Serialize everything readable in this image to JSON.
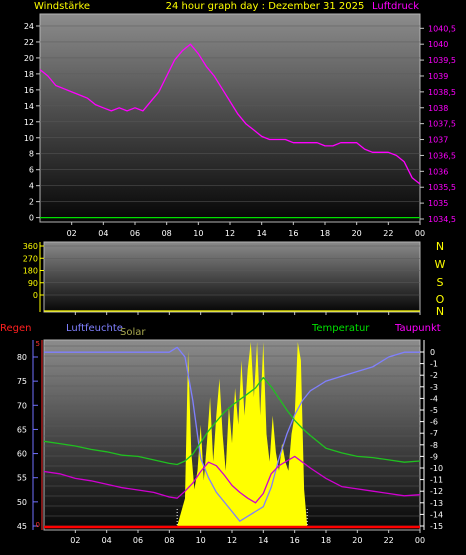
{
  "header": {
    "left_label": "Windstärke",
    "center_title": "24 hour graph day : Dezember 31 2025",
    "right_label": "Luftdruck"
  },
  "compass_letters": [
    "N",
    "W",
    "S",
    "O",
    "N"
  ],
  "bottom_labels": {
    "regen": "Regen",
    "luftfeuchte": "Luftfeuchte",
    "solar": "Solar",
    "temperatur": "Temperatur",
    "taupunkt": "Taupunkt"
  },
  "colors": {
    "yellow": "#ffff00",
    "magenta": "#ff00ff",
    "green": "#00e000",
    "blue_line": "#8a8aff",
    "red": "#ff0000",
    "solar": "#ffff00",
    "temp": "#20c020",
    "dew": "#d000d0",
    "hum": "#8080ff",
    "rain_axis": "#ff3030",
    "hum_axis": "#7070ff"
  },
  "chart_data": [
    {
      "type": "line",
      "panel": "wind-pressure",
      "x_ticks": [
        "02",
        "04",
        "06",
        "08",
        "10",
        "12",
        "14",
        "16",
        "18",
        "20",
        "22",
        "00"
      ],
      "y_left_ticks": [
        "0",
        "2",
        "4",
        "6",
        "8",
        "10",
        "12",
        "14",
        "16",
        "18",
        "20",
        "22",
        "24"
      ],
      "y_left_range": [
        0,
        24
      ],
      "y_right_ticks": [
        "1034,5",
        "1035",
        "1035,5",
        "1036",
        "1036,5",
        "1037",
        "1037,5",
        "1038",
        "1038,5",
        "1039",
        "1039,5",
        "1040",
        "1040,5"
      ],
      "y_right_range": [
        1034.5,
        1040.5
      ],
      "series": [
        {
          "color": "magenta",
          "axis": "right",
          "x": [
            0,
            0.5,
            1,
            1.5,
            2,
            2.5,
            3,
            3.5,
            4,
            4.5,
            5,
            5.5,
            6,
            6.5,
            7,
            7.5,
            8,
            8.5,
            9,
            9.5,
            10,
            10.5,
            11,
            11.5,
            12,
            12.5,
            13,
            13.5,
            14,
            14.5,
            15,
            15.5,
            16,
            16.5,
            17,
            17.5,
            18,
            18.5,
            19,
            19.5,
            20,
            20.5,
            21,
            21.5,
            22,
            22.5,
            23,
            23.5,
            24
          ],
          "y": [
            1039.2,
            1039.0,
            1038.7,
            1038.6,
            1038.5,
            1038.4,
            1038.3,
            1038.1,
            1038.0,
            1037.9,
            1038.0,
            1037.9,
            1038.0,
            1037.9,
            1038.2,
            1038.5,
            1039.0,
            1039.5,
            1039.8,
            1040.0,
            1039.7,
            1039.3,
            1039.0,
            1038.6,
            1038.2,
            1037.8,
            1037.5,
            1037.3,
            1037.1,
            1037.0,
            1037.0,
            1037.0,
            1036.9,
            1036.9,
            1036.9,
            1036.9,
            1036.8,
            1036.8,
            1036.9,
            1036.9,
            1036.9,
            1036.7,
            1036.6,
            1036.6,
            1036.6,
            1036.5,
            1036.3,
            1035.8,
            1035.6
          ]
        },
        {
          "color": "green",
          "axis": "left",
          "x": [
            0,
            24
          ],
          "y": [
            0,
            0
          ]
        }
      ]
    },
    {
      "type": "line",
      "panel": "wind-direction",
      "x_ticks": [
        "02",
        "04",
        "06",
        "08",
        "10",
        "12",
        "14",
        "16",
        "18",
        "20",
        "22",
        "00"
      ],
      "y_left_ticks": [
        "0",
        "90",
        "180",
        "270",
        "360"
      ],
      "y_left_range": [
        0,
        360
      ],
      "series": []
    },
    {
      "type": "line",
      "panel": "temp-humidity-solar",
      "x_ticks": [
        "02",
        "04",
        "06",
        "08",
        "10",
        "12",
        "14",
        "16",
        "18",
        "20",
        "22",
        "00"
      ],
      "y_left_ticks": [
        "45",
        "50",
        "55",
        "60",
        "65",
        "70",
        "75",
        "80"
      ],
      "y_left_range": [
        45,
        83
      ],
      "y_right_ticks": [
        "0",
        "-1",
        "-2",
        "-3",
        "-4",
        "-5",
        "-6",
        "-7",
        "-8",
        "-9",
        "-10",
        "-11",
        "-12",
        "-13",
        "-14",
        "-15"
      ],
      "y_right_range": [
        -15,
        0
      ],
      "rain_ticks": [
        "0",
        "5"
      ],
      "series": [
        {
          "name": "Solar",
          "color": "solar",
          "axis": "fill",
          "x": [
            8.5,
            9.0,
            9.2,
            9.4,
            9.6,
            9.8,
            10.0,
            10.2,
            10.4,
            10.6,
            10.8,
            11.0,
            11.2,
            11.4,
            11.6,
            11.8,
            12.0,
            12.2,
            12.4,
            12.6,
            12.8,
            13.0,
            13.2,
            13.4,
            13.6,
            13.8,
            14.0,
            14.2,
            14.4,
            14.6,
            14.8,
            15.0,
            15.2,
            15.4,
            15.6,
            15.8,
            16.0,
            16.2,
            16.4,
            16.6,
            16.8
          ],
          "y": [
            0.0,
            0.15,
            0.95,
            0.4,
            0.2,
            0.3,
            0.55,
            0.25,
            0.45,
            0.7,
            0.35,
            0.6,
            0.8,
            0.5,
            0.3,
            0.65,
            0.45,
            0.75,
            0.55,
            0.9,
            0.6,
            0.85,
            1.0,
            0.7,
            1.0,
            0.6,
            1.0,
            0.5,
            0.35,
            0.6,
            0.4,
            0.3,
            0.45,
            0.35,
            0.3,
            0.5,
            0.6,
            1.0,
            0.9,
            0.2,
            0.0
          ]
        },
        {
          "name": "Luftfeuchte",
          "color": "hum",
          "axis": "left",
          "x": [
            0,
            8,
            8.5,
            9.0,
            9.5,
            10.0,
            10.5,
            11.0,
            11.5,
            12.0,
            12.5,
            13.0,
            13.5,
            14.0,
            14.5,
            15.0,
            15.5,
            16.0,
            16.5,
            17.0,
            17.5,
            18.0,
            19.0,
            20.0,
            21.0,
            22.0,
            23.0,
            24.0
          ],
          "y": [
            81,
            81,
            82,
            80,
            71,
            59,
            55,
            52,
            50,
            48,
            46,
            47,
            48,
            49,
            53,
            59,
            64,
            68,
            71,
            73,
            74,
            75,
            76,
            77,
            78,
            80,
            81,
            81
          ]
        },
        {
          "name": "Temperatur",
          "color": "temp",
          "axis": "right",
          "x": [
            0,
            1,
            2,
            3,
            4,
            5,
            6,
            7,
            8,
            8.5,
            9,
            9.5,
            10,
            10.5,
            11,
            11.5,
            12,
            12.5,
            13,
            13.5,
            14,
            14.5,
            15,
            15.5,
            16,
            16.5,
            17,
            18,
            19,
            20,
            21,
            22,
            23,
            24
          ],
          "y": [
            -7.7,
            -7.9,
            -8.1,
            -8.4,
            -8.6,
            -8.9,
            -9.0,
            -9.3,
            -9.6,
            -9.7,
            -9.4,
            -8.8,
            -7.8,
            -6.8,
            -6.0,
            -5.2,
            -4.6,
            -4.1,
            -3.6,
            -3.1,
            -2.2,
            -3.0,
            -4.0,
            -5.0,
            -5.9,
            -6.6,
            -7.2,
            -8.3,
            -8.7,
            -9.0,
            -9.1,
            -9.3,
            -9.5,
            -9.4
          ]
        },
        {
          "name": "Taupunkt",
          "color": "dew",
          "axis": "right",
          "x": [
            0,
            1,
            2,
            3,
            4,
            5,
            6,
            7,
            8,
            8.5,
            9,
            9.5,
            10,
            10.5,
            11,
            11.5,
            12,
            12.5,
            13,
            13.5,
            14,
            14.5,
            15,
            15.5,
            16,
            16.5,
            17,
            18,
            19,
            20,
            21,
            22,
            23,
            24
          ],
          "y": [
            -10.3,
            -10.5,
            -10.9,
            -11.1,
            -11.4,
            -11.7,
            -11.9,
            -12.1,
            -12.5,
            -12.6,
            -12.0,
            -11.3,
            -10.3,
            -9.5,
            -9.8,
            -10.6,
            -11.5,
            -12.1,
            -12.6,
            -13.0,
            -12.2,
            -10.5,
            -9.8,
            -9.4,
            -9.0,
            -9.5,
            -10.0,
            -10.9,
            -11.6,
            -11.8,
            -12.0,
            -12.2,
            -12.4,
            -12.3
          ]
        },
        {
          "name": "Regen",
          "color": "red",
          "axis": "rain",
          "x": [
            0,
            24
          ],
          "y": [
            0,
            0
          ]
        }
      ]
    }
  ]
}
